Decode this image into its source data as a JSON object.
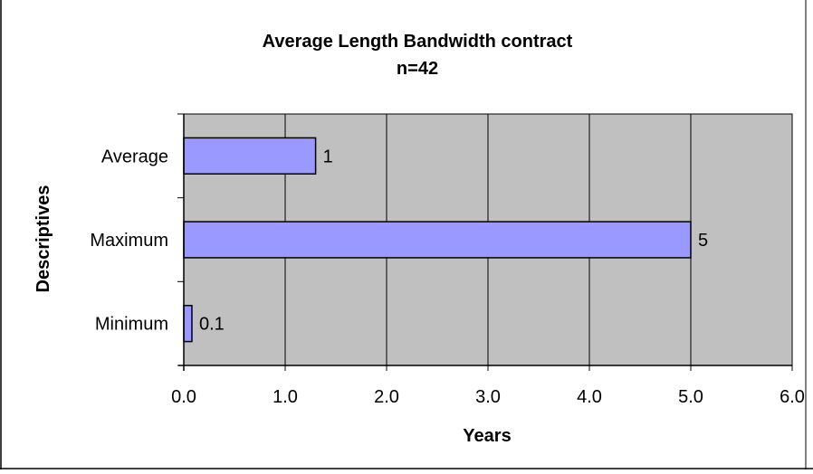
{
  "chart_data": {
    "type": "bar",
    "orientation": "horizontal",
    "title": "Average Length Bandwidth contract",
    "subtitle": "n=42",
    "xlabel": "Years",
    "ylabel": "Descriptives",
    "categories": [
      "Average",
      "Maximum",
      "Minimum"
    ],
    "values": [
      1.3,
      5.0,
      0.08
    ],
    "data_labels": [
      "1",
      "5",
      "0.1"
    ],
    "xlim": [
      0,
      6
    ],
    "x_ticks": [
      "0.0",
      "1.0",
      "2.0",
      "3.0",
      "4.0",
      "5.0",
      "6.0"
    ],
    "grid": "vertical",
    "legend": "none",
    "colors": {
      "bar_fill": "#9999ff",
      "plot_background": "#c0c0c0",
      "gridline": "#000000",
      "frame": "#000000"
    }
  }
}
